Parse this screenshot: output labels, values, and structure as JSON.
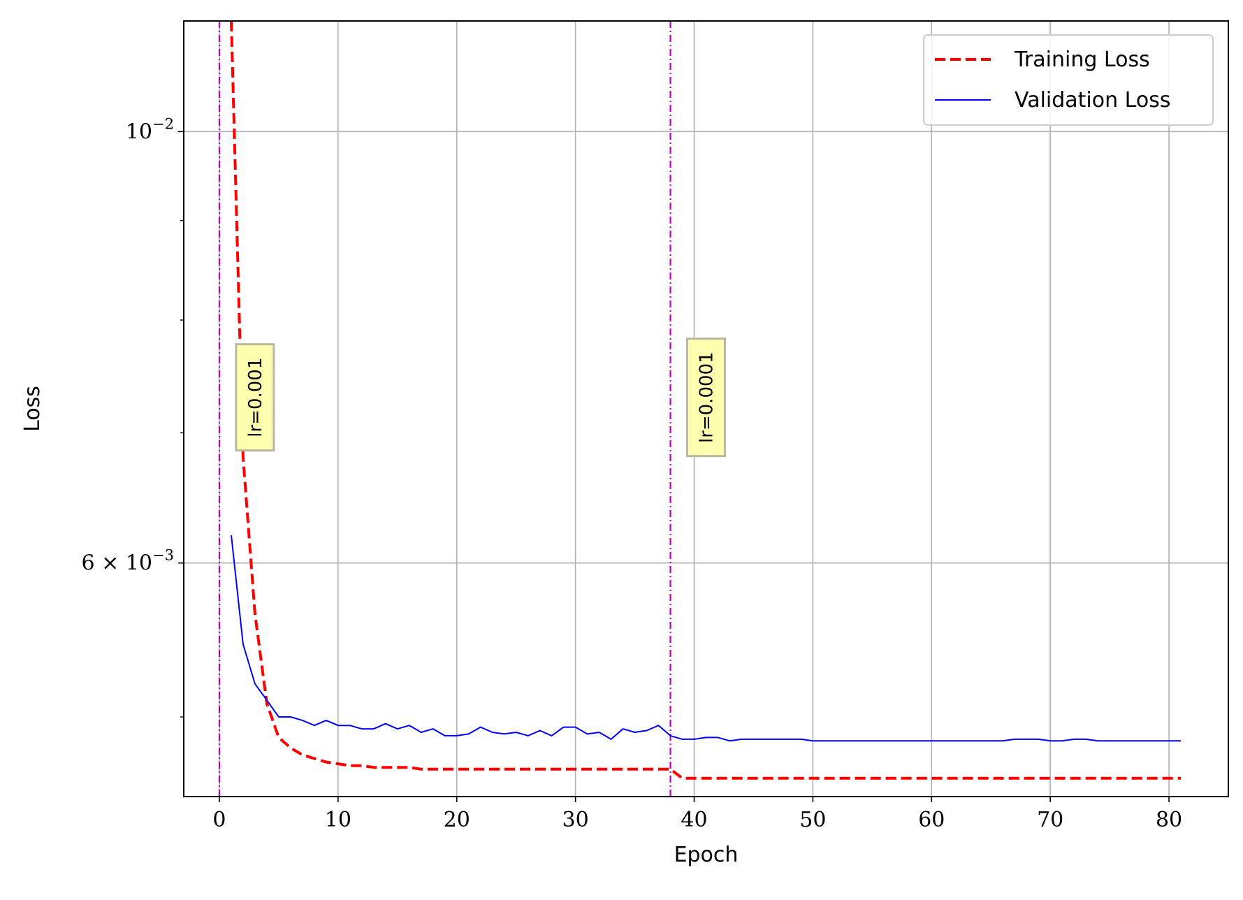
{
  "chart_data": {
    "type": "line",
    "xlabel": "Epoch",
    "ylabel": "Loss",
    "yscale": "log",
    "xlim": [
      -3,
      85
    ],
    "ylim": [
      0.00455,
      0.0114
    ],
    "grid": true,
    "legend_position": "top-right",
    "x_ticks": [
      0,
      10,
      20,
      30,
      40,
      50,
      60,
      70,
      80
    ],
    "y_ticks": [
      {
        "value": 0.01,
        "label": "10",
        "exponent": "−2"
      },
      {
        "value": 0.006,
        "label": "6 × 10",
        "exponent": "−3"
      }
    ],
    "y_minor_ticks": [
      0.009,
      0.008,
      0.007,
      0.005
    ],
    "series": [
      {
        "name": "Training Loss",
        "color": "#ff0000",
        "style": "dashed",
        "x": [
          1,
          2,
          3,
          4,
          5,
          6,
          7,
          8,
          9,
          10,
          11,
          12,
          13,
          14,
          15,
          16,
          17,
          18,
          19,
          20,
          21,
          22,
          23,
          24,
          25,
          26,
          27,
          28,
          29,
          30,
          31,
          32,
          33,
          34,
          35,
          36,
          37,
          38,
          39,
          40,
          41,
          42,
          43,
          44,
          45,
          46,
          47,
          48,
          49,
          50,
          51,
          52,
          53,
          54,
          55,
          56,
          57,
          58,
          59,
          60,
          61,
          62,
          63,
          64,
          65,
          66,
          67,
          68,
          69,
          70,
          71,
          72,
          73,
          74,
          75,
          76,
          77,
          78,
          79,
          80,
          81
        ],
        "y": [
          0.0114,
          0.0068,
          0.00565,
          0.00508,
          0.00488,
          0.00482,
          0.00478,
          0.00476,
          0.00474,
          0.00473,
          0.00472,
          0.00472,
          0.00471,
          0.00471,
          0.00471,
          0.00471,
          0.0047,
          0.0047,
          0.0047,
          0.0047,
          0.0047,
          0.0047,
          0.0047,
          0.0047,
          0.0047,
          0.0047,
          0.0047,
          0.0047,
          0.0047,
          0.0047,
          0.0047,
          0.0047,
          0.0047,
          0.0047,
          0.0047,
          0.0047,
          0.0047,
          0.0047,
          0.00465,
          0.00465,
          0.00465,
          0.00465,
          0.00465,
          0.00465,
          0.00465,
          0.00465,
          0.00465,
          0.00465,
          0.00465,
          0.00465,
          0.00465,
          0.00465,
          0.00465,
          0.00465,
          0.00465,
          0.00465,
          0.00465,
          0.00465,
          0.00465,
          0.00465,
          0.00465,
          0.00465,
          0.00465,
          0.00465,
          0.00465,
          0.00465,
          0.00465,
          0.00465,
          0.00465,
          0.00465,
          0.00465,
          0.00465,
          0.00465,
          0.00465,
          0.00465,
          0.00465,
          0.00465,
          0.00465,
          0.00465,
          0.00465,
          0.00465
        ]
      },
      {
        "name": "Validation Loss",
        "color": "#0000ff",
        "style": "solid",
        "x": [
          1,
          2,
          3,
          4,
          5,
          6,
          7,
          8,
          9,
          10,
          11,
          12,
          13,
          14,
          15,
          16,
          17,
          18,
          19,
          20,
          21,
          22,
          23,
          24,
          25,
          26,
          27,
          28,
          29,
          30,
          31,
          32,
          33,
          34,
          35,
          36,
          37,
          38,
          39,
          40,
          41,
          42,
          43,
          44,
          45,
          46,
          47,
          48,
          49,
          50,
          51,
          52,
          53,
          54,
          55,
          56,
          57,
          58,
          59,
          60,
          61,
          62,
          63,
          64,
          65,
          66,
          67,
          68,
          69,
          70,
          71,
          72,
          73,
          74,
          75,
          76,
          77,
          78,
          79,
          80,
          81
        ],
        "y": [
          0.0062,
          0.00545,
          0.0052,
          0.0051,
          0.005,
          0.005,
          0.00498,
          0.00495,
          0.00498,
          0.00495,
          0.00495,
          0.00493,
          0.00493,
          0.00496,
          0.00493,
          0.00495,
          0.00491,
          0.00493,
          0.00489,
          0.00489,
          0.0049,
          0.00494,
          0.00491,
          0.0049,
          0.00491,
          0.00489,
          0.00492,
          0.00489,
          0.00494,
          0.00494,
          0.0049,
          0.00491,
          0.00487,
          0.00493,
          0.00491,
          0.00492,
          0.00495,
          0.00489,
          0.00487,
          0.00487,
          0.00488,
          0.00488,
          0.00486,
          0.00487,
          0.00487,
          0.00487,
          0.00487,
          0.00487,
          0.00487,
          0.00486,
          0.00486,
          0.00486,
          0.00486,
          0.00486,
          0.00486,
          0.00486,
          0.00486,
          0.00486,
          0.00486,
          0.00486,
          0.00486,
          0.00486,
          0.00486,
          0.00486,
          0.00486,
          0.00486,
          0.00487,
          0.00487,
          0.00487,
          0.00486,
          0.00486,
          0.00487,
          0.00487,
          0.00486,
          0.00486,
          0.00486,
          0.00486,
          0.00486,
          0.00486,
          0.00486,
          0.00486
        ]
      }
    ],
    "vlines": [
      {
        "x": 0,
        "color": "#c000c0",
        "style": "dashdot"
      },
      {
        "x": 38,
        "color": "#c000c0",
        "style": "dashdot"
      }
    ],
    "annotations": [
      {
        "text": "lr=0.001",
        "x": 1.7,
        "y": 0.0073,
        "rotation": -90
      },
      {
        "text": "lr=0.0001",
        "x": 39.7,
        "y": 0.0073,
        "rotation": -90
      }
    ]
  }
}
